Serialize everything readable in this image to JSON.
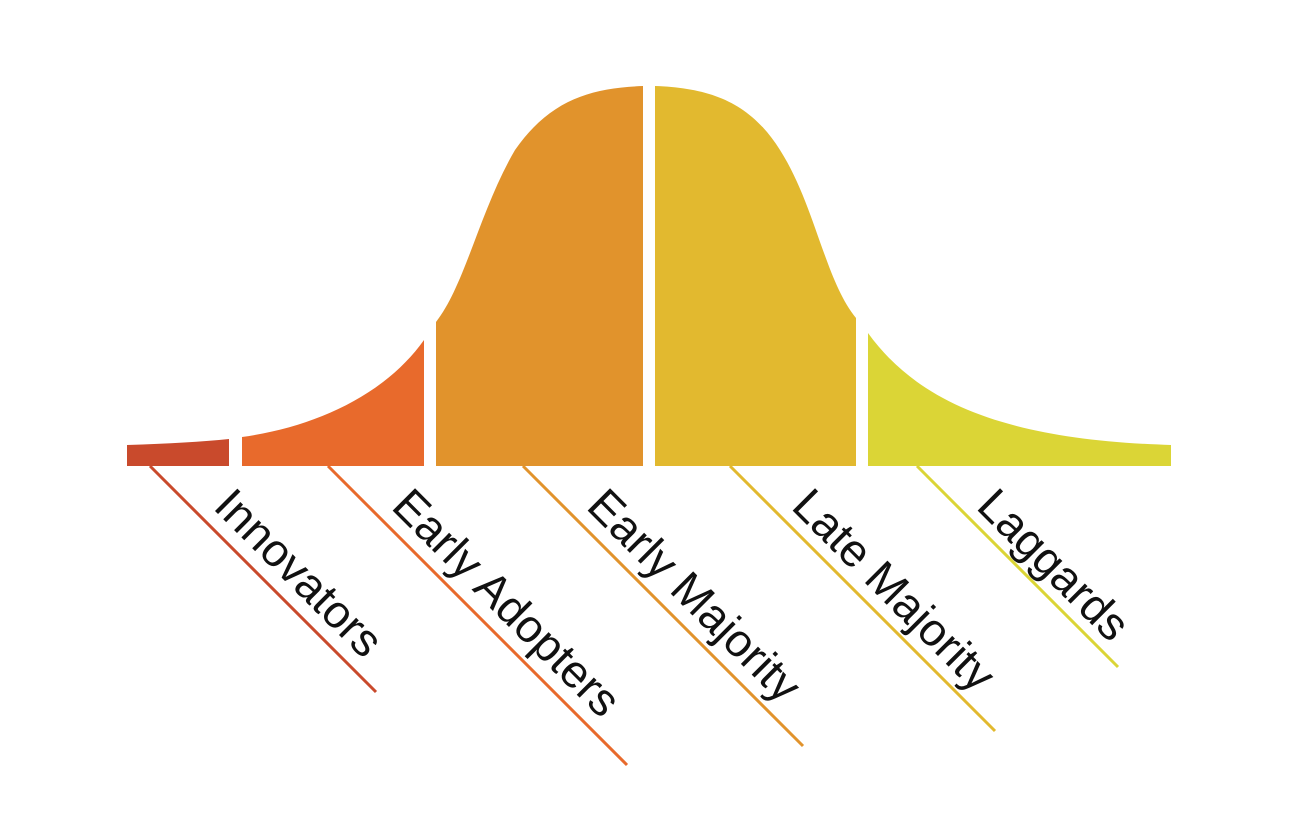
{
  "segments": [
    {
      "label": "Innovators",
      "color": "#c94a2c"
    },
    {
      "label": "Early Adopters",
      "color": "#e86a2c"
    },
    {
      "label": "Early Majority",
      "color": "#e1932c"
    },
    {
      "label": "Late Majority",
      "color": "#e2b92f"
    },
    {
      "label": "Laggards",
      "color": "#dbd536"
    }
  ]
}
